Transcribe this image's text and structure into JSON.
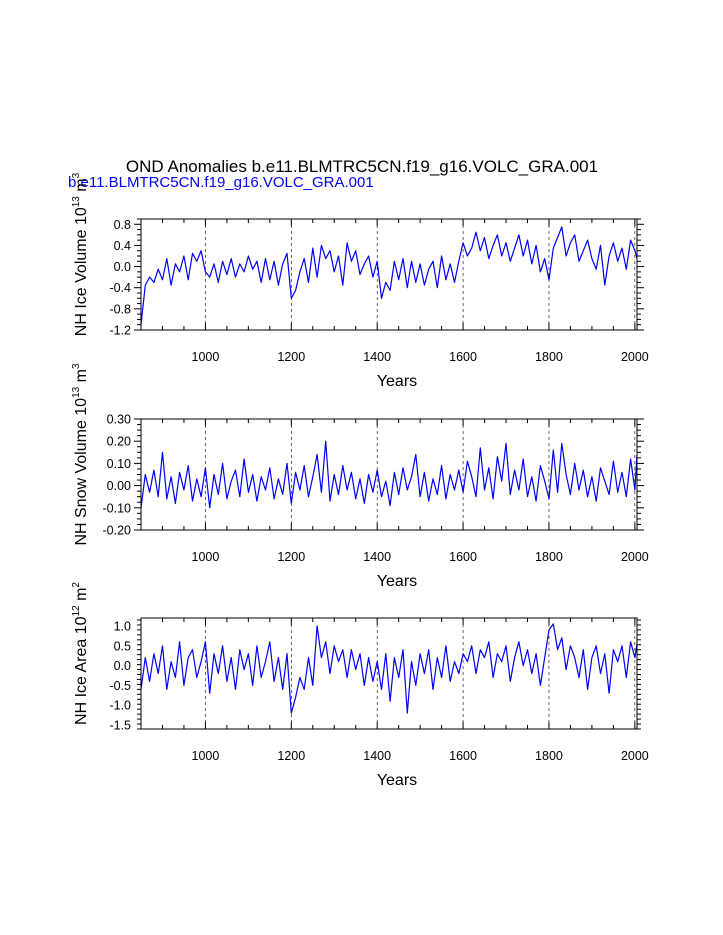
{
  "figure": {
    "title": "OND Anomalies b.e11.BLMTRC5CN.f19_g16.VOLC_GRA.001",
    "subtitle": "b.e11.BLMTRC5CN.f19_g16.VOLC_GRA.001",
    "series_color": "#0000ff"
  },
  "chart_data": [
    {
      "type": "line",
      "name": "nh-ice-volume",
      "title": "",
      "xlabel": "Years",
      "ylabel_parts": [
        "NH Ice Volume 10",
        "13",
        " m",
        "3"
      ],
      "xlim": [
        850,
        2005
      ],
      "ylim": [
        -1.2,
        0.9
      ],
      "xticks": [
        1000,
        1200,
        1400,
        1600,
        1800,
        2000
      ],
      "yticks": [
        -1.2,
        -0.8,
        -0.4,
        0.0,
        0.4,
        0.8
      ],
      "ytick_labels": [
        "-1.2",
        "-0.8",
        "-0.4",
        "0.0",
        "0.4",
        "0.8"
      ],
      "grid_x": [
        1000,
        1200,
        1400,
        1600,
        1800,
        2000
      ],
      "series": [
        {
          "name": "NH Ice Volume",
          "x": [
            850,
            860,
            870,
            880,
            890,
            900,
            910,
            920,
            930,
            940,
            950,
            960,
            970,
            980,
            990,
            1000,
            1010,
            1020,
            1030,
            1040,
            1050,
            1060,
            1070,
            1080,
            1090,
            1100,
            1110,
            1120,
            1130,
            1140,
            1150,
            1160,
            1170,
            1180,
            1190,
            1200,
            1210,
            1220,
            1230,
            1240,
            1250,
            1260,
            1270,
            1280,
            1290,
            1300,
            1310,
            1320,
            1330,
            1340,
            1350,
            1360,
            1370,
            1380,
            1390,
            1400,
            1410,
            1420,
            1430,
            1440,
            1450,
            1460,
            1470,
            1480,
            1490,
            1500,
            1510,
            1520,
            1530,
            1540,
            1550,
            1560,
            1570,
            1580,
            1590,
            1600,
            1610,
            1620,
            1630,
            1640,
            1650,
            1660,
            1670,
            1680,
            1690,
            1700,
            1710,
            1720,
            1730,
            1740,
            1750,
            1760,
            1770,
            1780,
            1790,
            1800,
            1810,
            1820,
            1830,
            1840,
            1850,
            1860,
            1870,
            1880,
            1890,
            1900,
            1910,
            1920,
            1930,
            1940,
            1950,
            1960,
            1970,
            1980,
            1990,
            2000,
            2005
          ],
          "values": [
            -1.1,
            -0.35,
            -0.2,
            -0.3,
            -0.05,
            -0.25,
            0.15,
            -0.35,
            0.05,
            -0.1,
            0.2,
            -0.25,
            0.25,
            0.1,
            0.3,
            -0.1,
            -0.2,
            0.05,
            -0.3,
            0.1,
            -0.15,
            0.15,
            -0.2,
            0.05,
            -0.1,
            0.2,
            -0.05,
            0.1,
            -0.3,
            0.15,
            -0.25,
            0.1,
            -0.35,
            0.05,
            0.25,
            -0.6,
            -0.45,
            -0.1,
            0.15,
            -0.3,
            0.35,
            -0.2,
            0.4,
            0.15,
            0.3,
            -0.1,
            0.2,
            -0.35,
            0.45,
            0.1,
            0.3,
            -0.15,
            0.05,
            0.2,
            -0.2,
            0.1,
            -0.6,
            -0.3,
            -0.45,
            0.1,
            -0.25,
            0.15,
            -0.4,
            0.1,
            -0.3,
            0.05,
            -0.35,
            -0.05,
            0.1,
            -0.4,
            0.2,
            -0.25,
            0.05,
            -0.3,
            0.1,
            0.45,
            0.2,
            0.35,
            0.65,
            0.3,
            0.55,
            0.15,
            0.4,
            0.6,
            0.2,
            0.45,
            0.1,
            0.35,
            0.6,
            0.2,
            0.5,
            0.05,
            0.4,
            -0.1,
            0.15,
            -0.25,
            0.35,
            0.55,
            0.75,
            0.2,
            0.45,
            0.6,
            0.1,
            0.3,
            0.5,
            0.15,
            -0.05,
            0.4,
            -0.35,
            0.2,
            0.45,
            0.1,
            0.35,
            -0.05,
            0.5,
            0.3,
            0.15
          ]
        }
      ]
    },
    {
      "type": "line",
      "name": "nh-snow-volume",
      "title": "",
      "xlabel": "Years",
      "ylabel_parts": [
        "NH Snow Volume 10",
        "13",
        " m",
        "3"
      ],
      "xlim": [
        850,
        2005
      ],
      "ylim": [
        -0.2,
        0.3
      ],
      "xticks": [
        1000,
        1200,
        1400,
        1600,
        1800,
        2000
      ],
      "yticks": [
        -0.2,
        -0.1,
        0.0,
        0.1,
        0.2,
        0.3
      ],
      "ytick_labels": [
        "-0.20",
        "-0.10",
        "0.00",
        "0.10",
        "0.20",
        "0.30"
      ],
      "grid_x": [
        1000,
        1200,
        1400,
        1600,
        1800,
        2000
      ],
      "series": [
        {
          "name": "NH Snow Volume",
          "x": [
            850,
            860,
            870,
            880,
            890,
            900,
            910,
            920,
            930,
            940,
            950,
            960,
            970,
            980,
            990,
            1000,
            1010,
            1020,
            1030,
            1040,
            1050,
            1060,
            1070,
            1080,
            1090,
            1100,
            1110,
            1120,
            1130,
            1140,
            1150,
            1160,
            1170,
            1180,
            1190,
            1200,
            1210,
            1220,
            1230,
            1240,
            1250,
            1260,
            1270,
            1280,
            1290,
            1300,
            1310,
            1320,
            1330,
            1340,
            1350,
            1360,
            1370,
            1380,
            1390,
            1400,
            1410,
            1420,
            1430,
            1440,
            1450,
            1460,
            1470,
            1480,
            1490,
            1500,
            1510,
            1520,
            1530,
            1540,
            1550,
            1560,
            1570,
            1580,
            1590,
            1600,
            1610,
            1620,
            1630,
            1640,
            1650,
            1660,
            1670,
            1680,
            1690,
            1700,
            1710,
            1720,
            1730,
            1740,
            1750,
            1760,
            1770,
            1780,
            1790,
            1800,
            1810,
            1820,
            1830,
            1840,
            1850,
            1860,
            1870,
            1880,
            1890,
            1900,
            1910,
            1920,
            1930,
            1940,
            1950,
            1960,
            1970,
            1980,
            1990,
            2000,
            2005
          ],
          "values": [
            -0.1,
            0.05,
            -0.03,
            0.07,
            -0.05,
            0.15,
            -0.06,
            0.04,
            -0.08,
            0.06,
            -0.02,
            0.09,
            -0.07,
            0.03,
            -0.05,
            0.08,
            -0.1,
            0.05,
            -0.04,
            0.1,
            -0.06,
            0.02,
            0.07,
            -0.05,
            0.12,
            -0.03,
            0.05,
            -0.07,
            0.04,
            -0.02,
            0.08,
            -0.06,
            0.03,
            -0.04,
            0.1,
            -0.08,
            0.06,
            -0.02,
            0.09,
            -0.05,
            0.04,
            0.14,
            -0.03,
            0.2,
            -0.07,
            0.05,
            -0.04,
            0.09,
            -0.02,
            0.06,
            -0.06,
            0.03,
            -0.08,
            0.05,
            -0.03,
            0.07,
            -0.05,
            0.02,
            -0.09,
            0.06,
            -0.04,
            0.08,
            -0.02,
            0.04,
            0.14,
            -0.05,
            0.06,
            -0.07,
            0.03,
            -0.04,
            0.09,
            -0.06,
            0.05,
            -0.02,
            0.07,
            -0.03,
            0.11,
            0.04,
            -0.05,
            0.17,
            -0.02,
            0.08,
            -0.06,
            0.13,
            0.02,
            0.19,
            -0.04,
            0.07,
            -0.02,
            0.12,
            -0.05,
            0.04,
            -0.07,
            0.09,
            0.02,
            -0.06,
            0.16,
            -0.03,
            0.19,
            0.05,
            -0.04,
            0.1,
            -0.02,
            0.07,
            -0.05,
            0.04,
            -0.07,
            0.08,
            0.02,
            -0.04,
            0.11,
            -0.03,
            0.06,
            -0.05,
            0.12,
            -0.02,
            0.14
          ]
        }
      ]
    },
    {
      "type": "line",
      "name": "nh-ice-area",
      "title": "",
      "xlabel": "Years",
      "ylabel_parts": [
        "NH Ice Area 10",
        "12",
        " m",
        "2"
      ],
      "xlim": [
        850,
        2005
      ],
      "ylim": [
        -1.6,
        1.2
      ],
      "xticks": [
        1000,
        1200,
        1400,
        1600,
        1800,
        2000
      ],
      "yticks": [
        -1.5,
        -1.0,
        -0.5,
        0.0,
        0.5,
        1.0
      ],
      "ytick_labels": [
        "-1.5",
        "-1.0",
        "-0.5",
        "0.0",
        "0.5",
        "1.0"
      ],
      "grid_x": [
        1000,
        1200,
        1400,
        1600,
        1800,
        2000
      ],
      "series": [
        {
          "name": "NH Ice Area",
          "x": [
            850,
            860,
            870,
            880,
            890,
            900,
            910,
            920,
            930,
            940,
            950,
            960,
            970,
            980,
            990,
            1000,
            1010,
            1020,
            1030,
            1040,
            1050,
            1060,
            1070,
            1080,
            1090,
            1100,
            1110,
            1120,
            1130,
            1140,
            1150,
            1160,
            1170,
            1180,
            1190,
            1200,
            1210,
            1220,
            1230,
            1240,
            1250,
            1260,
            1270,
            1280,
            1290,
            1300,
            1310,
            1320,
            1330,
            1340,
            1350,
            1360,
            1370,
            1380,
            1390,
            1400,
            1410,
            1420,
            1430,
            1440,
            1450,
            1460,
            1470,
            1480,
            1490,
            1500,
            1510,
            1520,
            1530,
            1540,
            1550,
            1560,
            1570,
            1580,
            1590,
            1600,
            1610,
            1620,
            1630,
            1640,
            1650,
            1660,
            1670,
            1680,
            1690,
            1700,
            1710,
            1720,
            1730,
            1740,
            1750,
            1760,
            1770,
            1780,
            1790,
            1800,
            1810,
            1820,
            1830,
            1840,
            1850,
            1860,
            1870,
            1880,
            1890,
            1900,
            1910,
            1920,
            1930,
            1940,
            1950,
            1960,
            1970,
            1980,
            1990,
            2000,
            2005
          ],
          "values": [
            -0.6,
            0.2,
            -0.4,
            0.3,
            -0.2,
            0.5,
            -0.6,
            0.1,
            -0.3,
            0.6,
            -0.5,
            0.2,
            0.4,
            -0.3,
            0.1,
            0.6,
            -0.7,
            0.3,
            -0.2,
            0.5,
            -0.4,
            0.2,
            -0.6,
            0.4,
            -0.1,
            0.3,
            -0.5,
            0.5,
            -0.3,
            0.1,
            0.6,
            -0.4,
            0.2,
            -0.6,
            0.3,
            -1.2,
            -0.8,
            -0.3,
            -0.6,
            0.2,
            -0.5,
            1.0,
            0.2,
            0.6,
            -0.2,
            0.5,
            0.1,
            0.4,
            -0.3,
            0.4,
            -0.1,
            0.3,
            -0.5,
            0.2,
            -0.4,
            0.1,
            -0.6,
            0.3,
            -0.9,
            0.2,
            -0.3,
            0.4,
            -1.2,
            0.1,
            -0.5,
            0.3,
            -0.2,
            0.4,
            -0.6,
            0.2,
            -0.3,
            0.5,
            -0.4,
            0.1,
            -0.2,
            0.3,
            0.1,
            0.5,
            -0.2,
            0.4,
            0.2,
            0.6,
            -0.3,
            0.3,
            0.1,
            0.5,
            -0.4,
            0.2,
            0.6,
            0.0,
            0.4,
            -0.2,
            0.3,
            -0.5,
            0.2,
            0.9,
            1.05,
            0.4,
            0.7,
            -0.1,
            0.5,
            0.2,
            -0.3,
            0.4,
            -0.6,
            0.2,
            0.5,
            -0.2,
            0.3,
            -0.7,
            0.4,
            0.1,
            0.5,
            -0.3,
            0.6,
            0.2,
            0.55
          ]
        }
      ]
    }
  ]
}
